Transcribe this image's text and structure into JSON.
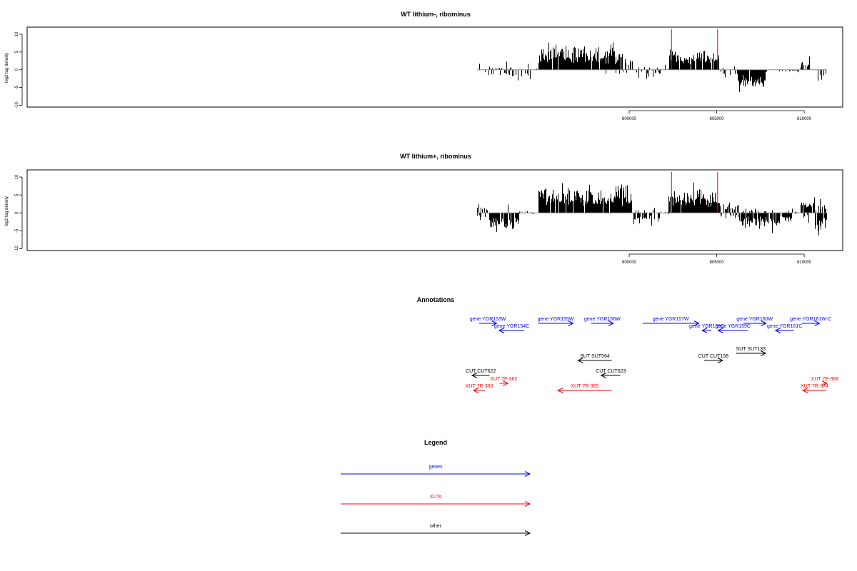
{
  "chart_data": [
    {
      "type": "bar",
      "title": "WT lithium-, ribominus",
      "ylabel": "log2 tag density",
      "xlabel": "",
      "xlim": [
        765600,
        812200
      ],
      "ylim": [
        -10.5,
        12
      ],
      "yticks": [
        10,
        5,
        0,
        -5,
        -10
      ],
      "xticks": [
        800000,
        805000,
        810000
      ],
      "xticklabels": [
        "800000",
        "805000",
        "810000"
      ],
      "vlines": [
        {
          "x": 802420,
          "color": "#ff0000"
        },
        {
          "x": 805050,
          "color": "#ff0000"
        }
      ],
      "segments": [
        {
          "start": 791300,
          "end": 791980,
          "amp": 1.0,
          "cdp": 0.3,
          "cdn": 0.12,
          "p": 2.5,
          "n": 1.5
        },
        {
          "start": 791980,
          "end": 793400,
          "amp": 0.6,
          "cdp": 0.3,
          "cdn": 0.3,
          "p": 1.5,
          "n": 3.5
        },
        {
          "start": 793400,
          "end": 794580,
          "amp": 1.0,
          "cdp": 0.08,
          "cdn": 0.3,
          "p": 1.2,
          "n": 2.5
        },
        {
          "start": 794580,
          "end": 794800,
          "amp": 0.5,
          "cdp": 0.5,
          "cdn": 0,
          "p": 1.0,
          "n": 0
        },
        {
          "start": 794800,
          "end": 796800,
          "amp": 1.0,
          "cdp": 0.9,
          "cdn": 0,
          "p": 5.5,
          "n": 0
        },
        {
          "start": 796800,
          "end": 798600,
          "amp": 1.0,
          "cdp": 0.9,
          "cdn": 0,
          "p": 5.2,
          "n": 0
        },
        {
          "start": 798600,
          "end": 799600,
          "amp": 1.0,
          "cdp": 0.9,
          "cdn": 0.05,
          "p": 5.5,
          "n": 1.0
        },
        {
          "start": 799600,
          "end": 800200,
          "amp": 1.0,
          "cdp": 0.6,
          "cdn": 0.05,
          "p": 3.5,
          "n": 0.8
        },
        {
          "start": 800200,
          "end": 800400,
          "amp": 0.3,
          "cdp": 0,
          "cdn": 0.1,
          "p": 0,
          "n": 0.8
        },
        {
          "start": 800400,
          "end": 801800,
          "amp": 1.0,
          "cdp": 0.08,
          "cdn": 0.3,
          "p": 1.0,
          "n": 2.0
        },
        {
          "start": 801800,
          "end": 802300,
          "amp": 0.5,
          "cdp": 0.2,
          "cdn": 0,
          "p": 1.0,
          "n": 0
        },
        {
          "start": 802300,
          "end": 805150,
          "amp": 1.0,
          "cdp": 0.9,
          "cdn": 0,
          "p": 4.5,
          "n": 0
        },
        {
          "start": 805150,
          "end": 806200,
          "amp": 1.0,
          "cdp": 0.06,
          "cdn": 0.3,
          "p": 0.8,
          "n": 2.0
        },
        {
          "start": 806200,
          "end": 807800,
          "amp": 1.0,
          "cdp": 0,
          "cdn": 0.95,
          "p": 0,
          "n": 5.0
        },
        {
          "start": 807800,
          "end": 809800,
          "amp": 0.3,
          "cdp": 0,
          "cdn": 0.3,
          "p": 0,
          "n": 2.0
        },
        {
          "start": 809800,
          "end": 810350,
          "amp": 1.0,
          "cdp": 0.6,
          "cdn": 0,
          "p": 3.0,
          "n": 0
        },
        {
          "start": 810350,
          "end": 811300,
          "amp": 1.0,
          "cdp": 0,
          "cdn": 0.3,
          "p": 0,
          "n": 2.5
        }
      ]
    },
    {
      "type": "bar",
      "title": "WT lithium+, ribominus",
      "ylabel": "log2 tag density",
      "xlabel": "",
      "xlim": [
        765600,
        812200
      ],
      "ylim": [
        -10.5,
        12
      ],
      "yticks": [
        10,
        5,
        0,
        -5,
        -10
      ],
      "xticks": [
        800000,
        805000,
        810000
      ],
      "xticklabels": [
        "800000",
        "805000",
        "810000"
      ],
      "vlines": [
        {
          "x": 802420,
          "color": "#ff0000"
        },
        {
          "x": 805050,
          "color": "#ff0000"
        }
      ],
      "segments": [
        {
          "start": 791300,
          "end": 792000,
          "amp": 1.0,
          "cdp": 0.4,
          "cdn": 0.3,
          "p": 2.0,
          "n": 2.0
        },
        {
          "start": 792000,
          "end": 793700,
          "amp": 1.0,
          "cdp": 0.05,
          "cdn": 0.9,
          "p": 1.0,
          "n": 4.5
        },
        {
          "start": 793700,
          "end": 794800,
          "amp": 0.5,
          "cdp": 0.2,
          "cdn": 0.1,
          "p": 1.0,
          "n": 0.8
        },
        {
          "start": 794800,
          "end": 800200,
          "amp": 1.0,
          "cdp": 0.95,
          "cdn": 0,
          "p": 6.5,
          "n": 0
        },
        {
          "start": 800200,
          "end": 801800,
          "amp": 1.0,
          "cdp": 0.2,
          "cdn": 0.6,
          "p": 1.2,
          "n": 2.5
        },
        {
          "start": 801800,
          "end": 802250,
          "amp": 0.5,
          "cdp": 0.3,
          "cdn": 0.1,
          "p": 1.0,
          "n": 0.8
        },
        {
          "start": 802250,
          "end": 805200,
          "amp": 1.0,
          "cdp": 0.95,
          "cdn": 0,
          "p": 5.5,
          "n": 0
        },
        {
          "start": 805200,
          "end": 806300,
          "amp": 1.0,
          "cdp": 0.6,
          "cdn": 0.3,
          "p": 2.5,
          "n": 1.5
        },
        {
          "start": 806300,
          "end": 808600,
          "amp": 1.0,
          "cdp": 0.2,
          "cdn": 0.85,
          "p": 1.0,
          "n": 3.5
        },
        {
          "start": 808600,
          "end": 809300,
          "amp": 1.0,
          "cdp": 0.1,
          "cdn": 0.8,
          "p": 0.8,
          "n": 2.5
        },
        {
          "start": 809300,
          "end": 809800,
          "amp": 0.5,
          "cdp": 0.2,
          "cdn": 0.2,
          "p": 0.8,
          "n": 1.0
        },
        {
          "start": 809800,
          "end": 810600,
          "amp": 1.0,
          "cdp": 0.9,
          "cdn": 0.3,
          "p": 3.5,
          "n": 2.0
        },
        {
          "start": 810600,
          "end": 811300,
          "amp": 1.0,
          "cdp": 0.5,
          "cdn": 0.9,
          "p": 2.0,
          "n": 4.5
        }
      ]
    }
  ],
  "annotations": {
    "title": "Annotations",
    "features": [
      {
        "label": "gene YGR153W",
        "cat": "gene",
        "start": 791420,
        "end": 792430,
        "dir": "+",
        "row": 0
      },
      {
        "label": "gene YGR154C",
        "cat": "gene",
        "start": 792570,
        "end": 794010,
        "dir": "-",
        "row": 1
      },
      {
        "label": "gene YGR155W",
        "cat": "gene",
        "start": 794800,
        "end": 796800,
        "dir": "+",
        "row": 0
      },
      {
        "label": "gene YGR156W",
        "cat": "gene",
        "start": 797820,
        "end": 799100,
        "dir": "+",
        "row": 0
      },
      {
        "label": "gene YGR157W",
        "cat": "gene",
        "start": 800770,
        "end": 803980,
        "dir": "+",
        "row": 0
      },
      {
        "label": "gene YGR158C",
        "cat": "gene",
        "start": 804170,
        "end": 804700,
        "dir": "-",
        "row": 1
      },
      {
        "label": "gene YGR159C",
        "cat": "gene",
        "start": 805080,
        "end": 806780,
        "dir": "-",
        "row": 1
      },
      {
        "label": "gene YGR160W",
        "cat": "gene",
        "start": 806520,
        "end": 807820,
        "dir": "+",
        "row": 0
      },
      {
        "label": "gene YGR161C",
        "cat": "gene",
        "start": 808360,
        "end": 809400,
        "dir": "-",
        "row": 1
      },
      {
        "label": "gene YGR161W-C",
        "cat": "gene",
        "start": 809860,
        "end": 810880,
        "dir": "+",
        "row": 0
      },
      {
        "label": "SUT SUT133",
        "cat": "other",
        "start": 806100,
        "end": 807800,
        "dir": "+",
        "row": 3
      },
      {
        "label": "SUT SUT564",
        "cat": "other",
        "start": 797080,
        "end": 799000,
        "dir": "-",
        "row": 4
      },
      {
        "label": "CUT CUT622",
        "cat": "other",
        "start": 791020,
        "end": 792020,
        "dir": "-",
        "row": 5
      },
      {
        "label": "CUT CUT623",
        "cat": "other",
        "start": 798400,
        "end": 799500,
        "dir": "-",
        "row": 5
      },
      {
        "label": "CUT CUT158",
        "cat": "other",
        "start": 804280,
        "end": 805340,
        "dir": "+",
        "row": 4
      },
      {
        "label": "XUT 7F-362",
        "cat": "xut",
        "start": 792590,
        "end": 793070,
        "dir": "+",
        "row": 6
      },
      {
        "label": "XUT 7R-360",
        "cat": "xut",
        "start": 791100,
        "end": 791770,
        "dir": "-",
        "row": 7
      },
      {
        "label": "XUT 7R-365",
        "cat": "xut",
        "start": 795930,
        "end": 799000,
        "dir": "-",
        "row": 7
      },
      {
        "label": "XUT 7E-368",
        "cat": "xut",
        "start": 811060,
        "end": 811300,
        "dir": "+",
        "row": 6
      },
      {
        "label": "XUT 7R-374",
        "cat": "xut",
        "start": 809920,
        "end": 811260,
        "dir": "-",
        "row": 7
      }
    ]
  },
  "legend": {
    "title": "Legend",
    "items": [
      {
        "label": "genes",
        "color": "#0000ff"
      },
      {
        "label": "XUTs",
        "color": "#ff0000"
      },
      {
        "label": "other",
        "color": "#000000"
      }
    ]
  },
  "colors": {
    "gene": "#0000ff",
    "xut": "#ff0000",
    "other": "#000000"
  }
}
